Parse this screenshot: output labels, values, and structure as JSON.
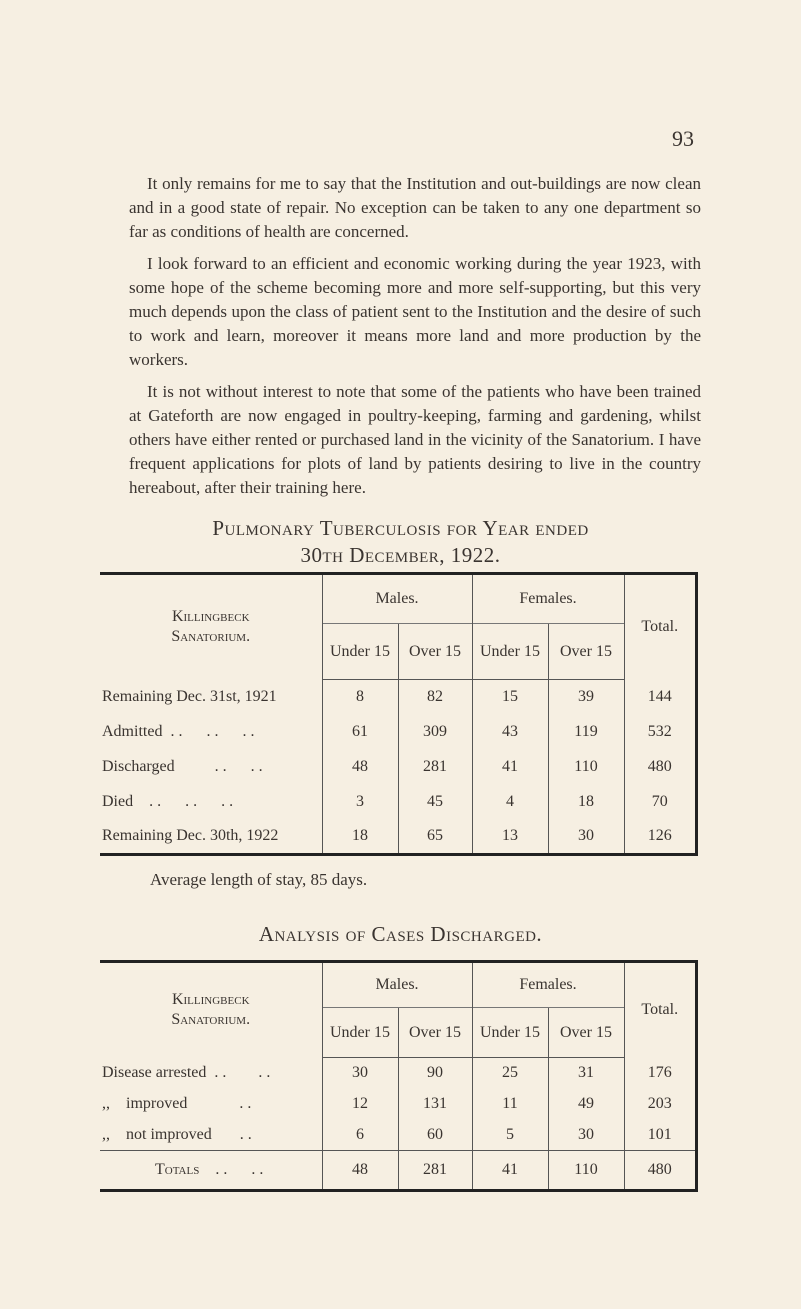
{
  "page_number": "93",
  "paragraphs": [
    "It only remains for me to say that the Institution and out-buildings are now clean and in a good state of repair. No exception can be taken to any one department so far as conditions of health are concerned.",
    "I look forward to an efficient and economic working during the year 1923, with some hope of the scheme becoming more and more self-supporting, but this very much depends upon the class of patient sent to the Institution and the desire of such to work and learn, moreover it means more land and more production by the workers.",
    "It is not without interest to note that some of the patients who have been trained at Gateforth are now engaged in poultry-keeping, farming and gardening, whilst others have either rented or purchased land in the vicinity of the Sanatorium. I have frequent applications for plots of land by patients desiring to live in the country hereabout, after their training here."
  ],
  "table1": {
    "title_line1": "Pulmonary Tuberculosis for Year ended",
    "title_line2": "30th December, 1922.",
    "corner": "Killingbeck Sanatorium.",
    "males": "Males.",
    "females": "Females.",
    "total": "Total.",
    "sub": [
      "Under 15",
      "Over 15",
      "Under 15",
      "Over 15"
    ],
    "rows": [
      {
        "label": "Remaining Dec. 31st, 1921",
        "values": [
          "8",
          "82",
          "15",
          "39",
          "144"
        ]
      },
      {
        "label": "Admitted  . .      . .      . .",
        "values": [
          "61",
          "309",
          "43",
          "119",
          "532"
        ]
      },
      {
        "label": "Discharged          . .      . .",
        "values": [
          "48",
          "281",
          "41",
          "110",
          "480"
        ]
      },
      {
        "label": "Died    . .      . .      . .",
        "values": [
          "3",
          "45",
          "4",
          "18",
          "70"
        ]
      },
      {
        "label": "Remaining Dec. 30th, 1922",
        "values": [
          "18",
          "65",
          "13",
          "30",
          "126"
        ]
      }
    ]
  },
  "note": "Average length of stay, 85 days.",
  "table2": {
    "title": "Analysis of Cases Discharged.",
    "corner": "Killingbeck Sanatorium.",
    "males": "Males.",
    "females": "Females.",
    "total": "Total.",
    "sub": [
      "Under 15",
      "Over 15",
      "Under 15",
      "Over 15"
    ],
    "rows": [
      {
        "label": "Disease arrested  . .        . .",
        "values": [
          "30",
          "90",
          "25",
          "31",
          "176"
        ]
      },
      {
        "label": ",,    improved             . .",
        "values": [
          "12",
          "131",
          "11",
          "49",
          "203"
        ]
      },
      {
        "label": ",,    not improved       . .",
        "values": [
          "6",
          "60",
          "5",
          "30",
          "101"
        ]
      }
    ],
    "totals": {
      "label": "Totals    . .      . .",
      "values": [
        "48",
        "281",
        "41",
        "110",
        "480"
      ]
    }
  }
}
